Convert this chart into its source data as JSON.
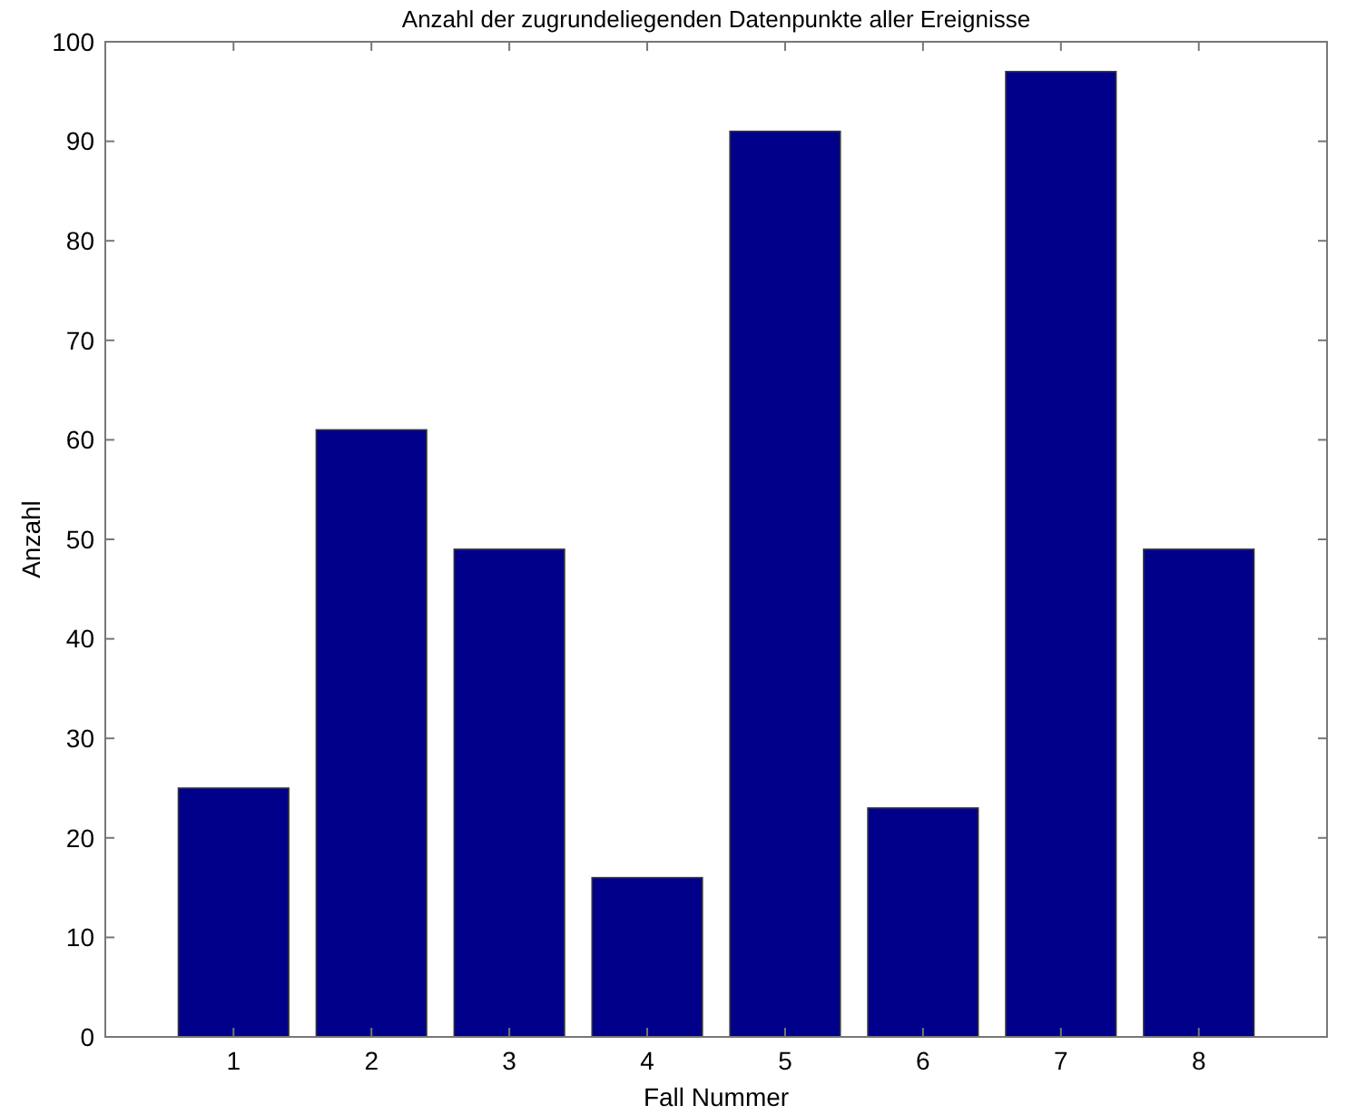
{
  "chart_data": {
    "type": "bar",
    "title": "Anzahl der zugrundeliegenden Datenpunkte aller Ereignisse",
    "xlabel": "Fall Nummer",
    "ylabel": "Anzahl",
    "categories": [
      "1",
      "2",
      "3",
      "4",
      "5",
      "6",
      "7",
      "8"
    ],
    "values": [
      25,
      61,
      49,
      16,
      91,
      23,
      97,
      49
    ],
    "color": "#00008b",
    "ylim": [
      0,
      100
    ],
    "yticks": [
      0,
      10,
      20,
      30,
      40,
      50,
      60,
      70,
      80,
      90,
      100
    ],
    "grid": false
  }
}
